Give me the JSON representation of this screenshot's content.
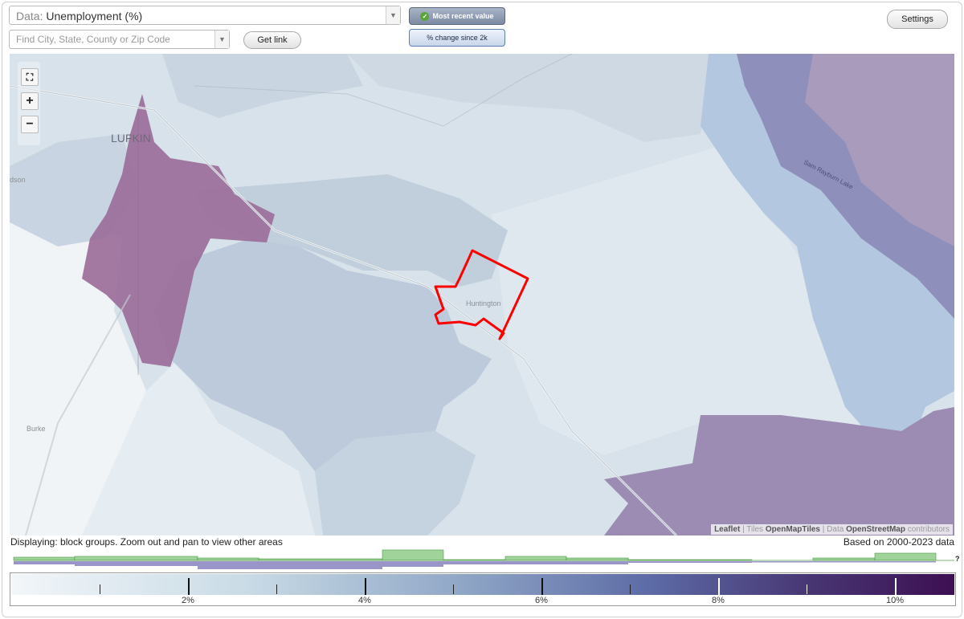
{
  "data_select": {
    "prefix": "Data:",
    "value": "Unemployment (%)"
  },
  "search": {
    "placeholder": "Find City, State, County or Zip Code"
  },
  "buttons": {
    "get_link": "Get link",
    "most_recent": "Most recent value",
    "pct_change": "% change since 2k",
    "settings": "Settings"
  },
  "map": {
    "labels": {
      "lufkin": "LUFKIN",
      "hudson": "dson",
      "huntington": "Huntington",
      "burke": "Burke",
      "lake": "Sam Rayburn Lake"
    },
    "selected_area": "Huntington",
    "attribution": {
      "leaflet": "Leaflet",
      "tiles_prefix": "Tiles",
      "tiles": "OpenMapTiles",
      "data_prefix": "Data",
      "osm": "OpenStreetMap",
      "contributors": "contributors"
    }
  },
  "status": {
    "displaying": "Displaying: block groups. Zoom out and pan to view other areas",
    "based_on": "Based on 2000-2023 data"
  },
  "help_mark": "?",
  "legend": {
    "major_ticks": [
      "2%",
      "4%",
      "6%",
      "8%",
      "10%"
    ],
    "minor_ticks": [
      "1%",
      "3%",
      "5%",
      "7%",
      "9%",
      "11%"
    ]
  },
  "colors": {
    "accent_purple": "#9a6c98",
    "selection_outline": "#ff0000",
    "histogram_green": "#9fd39a",
    "histogram_purple": "#9a95c9"
  }
}
